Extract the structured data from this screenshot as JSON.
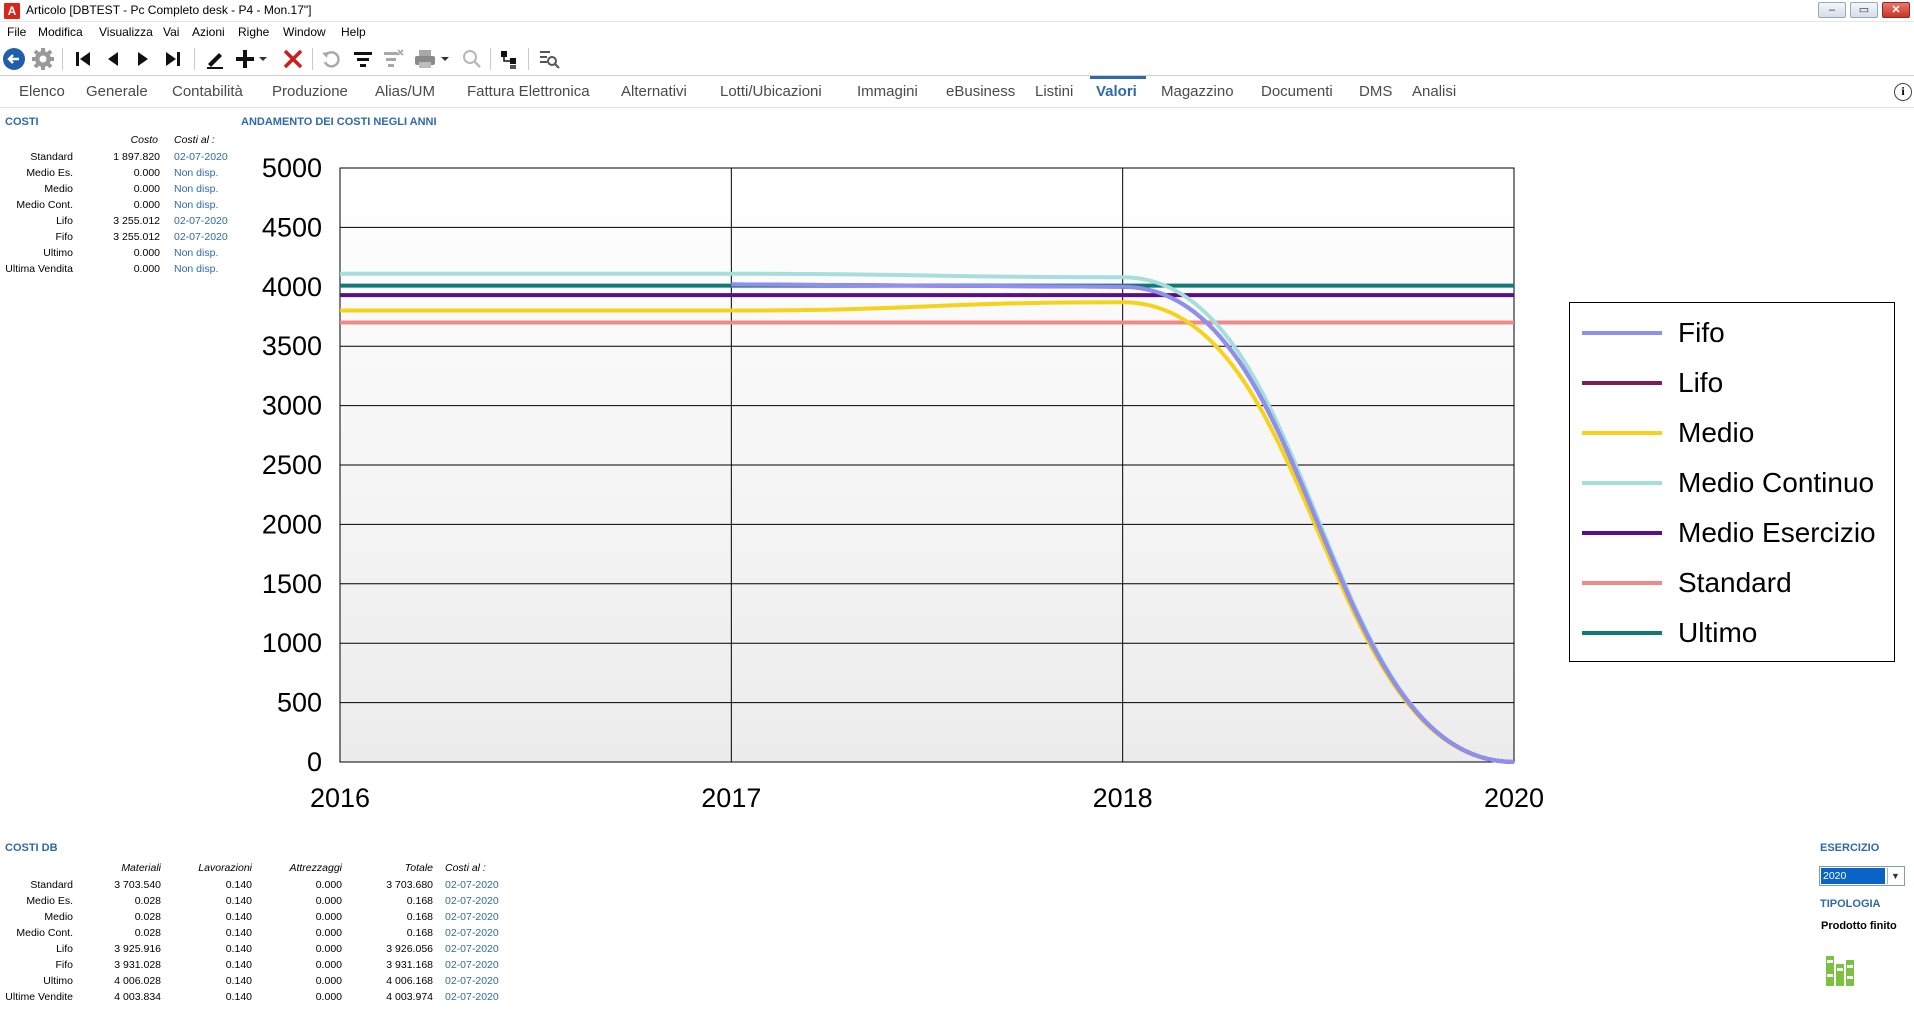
{
  "window": {
    "app_icon": "A",
    "title": "Articolo [DBTEST - Pc Completo desk - P4 - Mon.17\"]",
    "minimize": "–",
    "restore": "▭",
    "close": "✕"
  },
  "menu": [
    "File",
    "Modifica",
    "Visualizza",
    "Vai",
    "Azioni",
    "Righe",
    "Window",
    "Help"
  ],
  "toolbar_icons": [
    "back-circle-icon",
    "gear-icon",
    "first-record-icon",
    "prev-record-icon",
    "next-record-icon",
    "last-record-icon",
    "edit-pencil-icon",
    "add-icon",
    "delete-icon",
    "refresh-icon",
    "filter-icon",
    "clear-filter-icon",
    "print-icon",
    "print-preview-icon",
    "tree-icon",
    "search-list-icon"
  ],
  "tabs": [
    "Elenco",
    "Generale",
    "Contabilità",
    "Produzione",
    "Alias/UM",
    "Fattura Elettronica",
    "Alternativi",
    "Lotti/Ubicazioni",
    "Immagini",
    "eBusiness",
    "Listini",
    "Valori",
    "Magazzino",
    "Documenti",
    "DMS",
    "Analisi"
  ],
  "active_tab": "Valori",
  "costi": {
    "title": "COSTI",
    "header_costo": "Costo",
    "header_costi_al": "Costi al :",
    "rows": [
      {
        "label": "Standard",
        "costo": "1 897.820",
        "data": "02-07-2020"
      },
      {
        "label": "Medio Es.",
        "costo": "0.000",
        "data": "Non disp."
      },
      {
        "label": "Medio",
        "costo": "0.000",
        "data": "Non disp."
      },
      {
        "label": "Medio Cont.",
        "costo": "0.000",
        "data": "Non disp."
      },
      {
        "label": "Lifo",
        "costo": "3 255.012",
        "data": "02-07-2020"
      },
      {
        "label": "Fifo",
        "costo": "3 255.012",
        "data": "02-07-2020"
      },
      {
        "label": "Ultimo",
        "costo": "0.000",
        "data": "Non disp."
      },
      {
        "label": "Ultima Vendita",
        "costo": "0.000",
        "data": "Non disp."
      }
    ]
  },
  "chart_title": "ANDAMENTO DEI COSTI NEGLI ANNI",
  "chart_data": {
    "type": "line",
    "title": "ANDAMENTO DEI COSTI NEGLI ANNI",
    "x": [
      2016,
      2017,
      2018,
      2020
    ],
    "x_tick_labels": [
      "2016",
      "2017",
      "2018",
      "2020"
    ],
    "ylim": [
      0,
      5000
    ],
    "y_ticks": [
      0,
      500,
      1000,
      1500,
      2000,
      2500,
      3000,
      3500,
      4000,
      4500,
      5000
    ],
    "grid": true,
    "legend_position": "right",
    "series": [
      {
        "name": "Fifo",
        "color": "#8f8ff0",
        "values": [
          null,
          4020,
          4000,
          0
        ]
      },
      {
        "name": "Lifo",
        "color": "#7b1f55",
        "values": [
          null,
          4020,
          4000,
          0
        ]
      },
      {
        "name": "Medio",
        "color": "#f7d21a",
        "values": [
          3800,
          3800,
          3870,
          0
        ]
      },
      {
        "name": "Medio Continuo",
        "color": "#a6dede",
        "values": [
          4110,
          4110,
          4080,
          0
        ]
      },
      {
        "name": "Medio Esercizio",
        "color": "#5a0e8a",
        "values": [
          3930,
          3930,
          3930,
          3930
        ]
      },
      {
        "name": "Standard",
        "color": "#f08a8a",
        "values": [
          3700,
          3700,
          3700,
          3700
        ]
      },
      {
        "name": "Ultimo",
        "color": "#127a76",
        "values": [
          4010,
          4010,
          4010,
          4010
        ]
      }
    ]
  },
  "costi_db": {
    "title": "COSTI DB",
    "headers": [
      "Materiali",
      "Lavorazioni",
      "Attrezzaggi",
      "Totale",
      "Costi al :"
    ],
    "rows": [
      {
        "label": "Standard",
        "materiali": "3 703.540",
        "lavorazioni": "0.140",
        "attrezzaggi": "0.000",
        "totale": "3 703.680",
        "data": "02-07-2020"
      },
      {
        "label": "Medio Es.",
        "materiali": "0.028",
        "lavorazioni": "0.140",
        "attrezzaggi": "0.000",
        "totale": "0.168",
        "data": "02-07-2020"
      },
      {
        "label": "Medio",
        "materiali": "0.028",
        "lavorazioni": "0.140",
        "attrezzaggi": "0.000",
        "totale": "0.168",
        "data": "02-07-2020"
      },
      {
        "label": "Medio Cont.",
        "materiali": "0.028",
        "lavorazioni": "0.140",
        "attrezzaggi": "0.000",
        "totale": "0.168",
        "data": "02-07-2020"
      },
      {
        "label": "Lifo",
        "materiali": "3 925.916",
        "lavorazioni": "0.140",
        "attrezzaggi": "0.000",
        "totale": "3 926.056",
        "data": "02-07-2020"
      },
      {
        "label": "Fifo",
        "materiali": "3 931.028",
        "lavorazioni": "0.140",
        "attrezzaggi": "0.000",
        "totale": "3 931.168",
        "data": "02-07-2020"
      },
      {
        "label": "Ultimo",
        "materiali": "4 006.028",
        "lavorazioni": "0.140",
        "attrezzaggi": "0.000",
        "totale": "4 006.168",
        "data": "02-07-2020"
      },
      {
        "label": "Ultime Vendite",
        "materiali": "4 003.834",
        "lavorazioni": "0.140",
        "attrezzaggi": "0.000",
        "totale": "4 003.974",
        "data": "02-07-2020"
      }
    ]
  },
  "esercizio": {
    "title": "ESERCIZIO",
    "value": "2020"
  },
  "tipologia": {
    "title": "TIPOLOGIA",
    "value": "Prodotto finito"
  },
  "colors": {
    "accent": "#2f6aa8",
    "date": "#2f6aa8"
  }
}
